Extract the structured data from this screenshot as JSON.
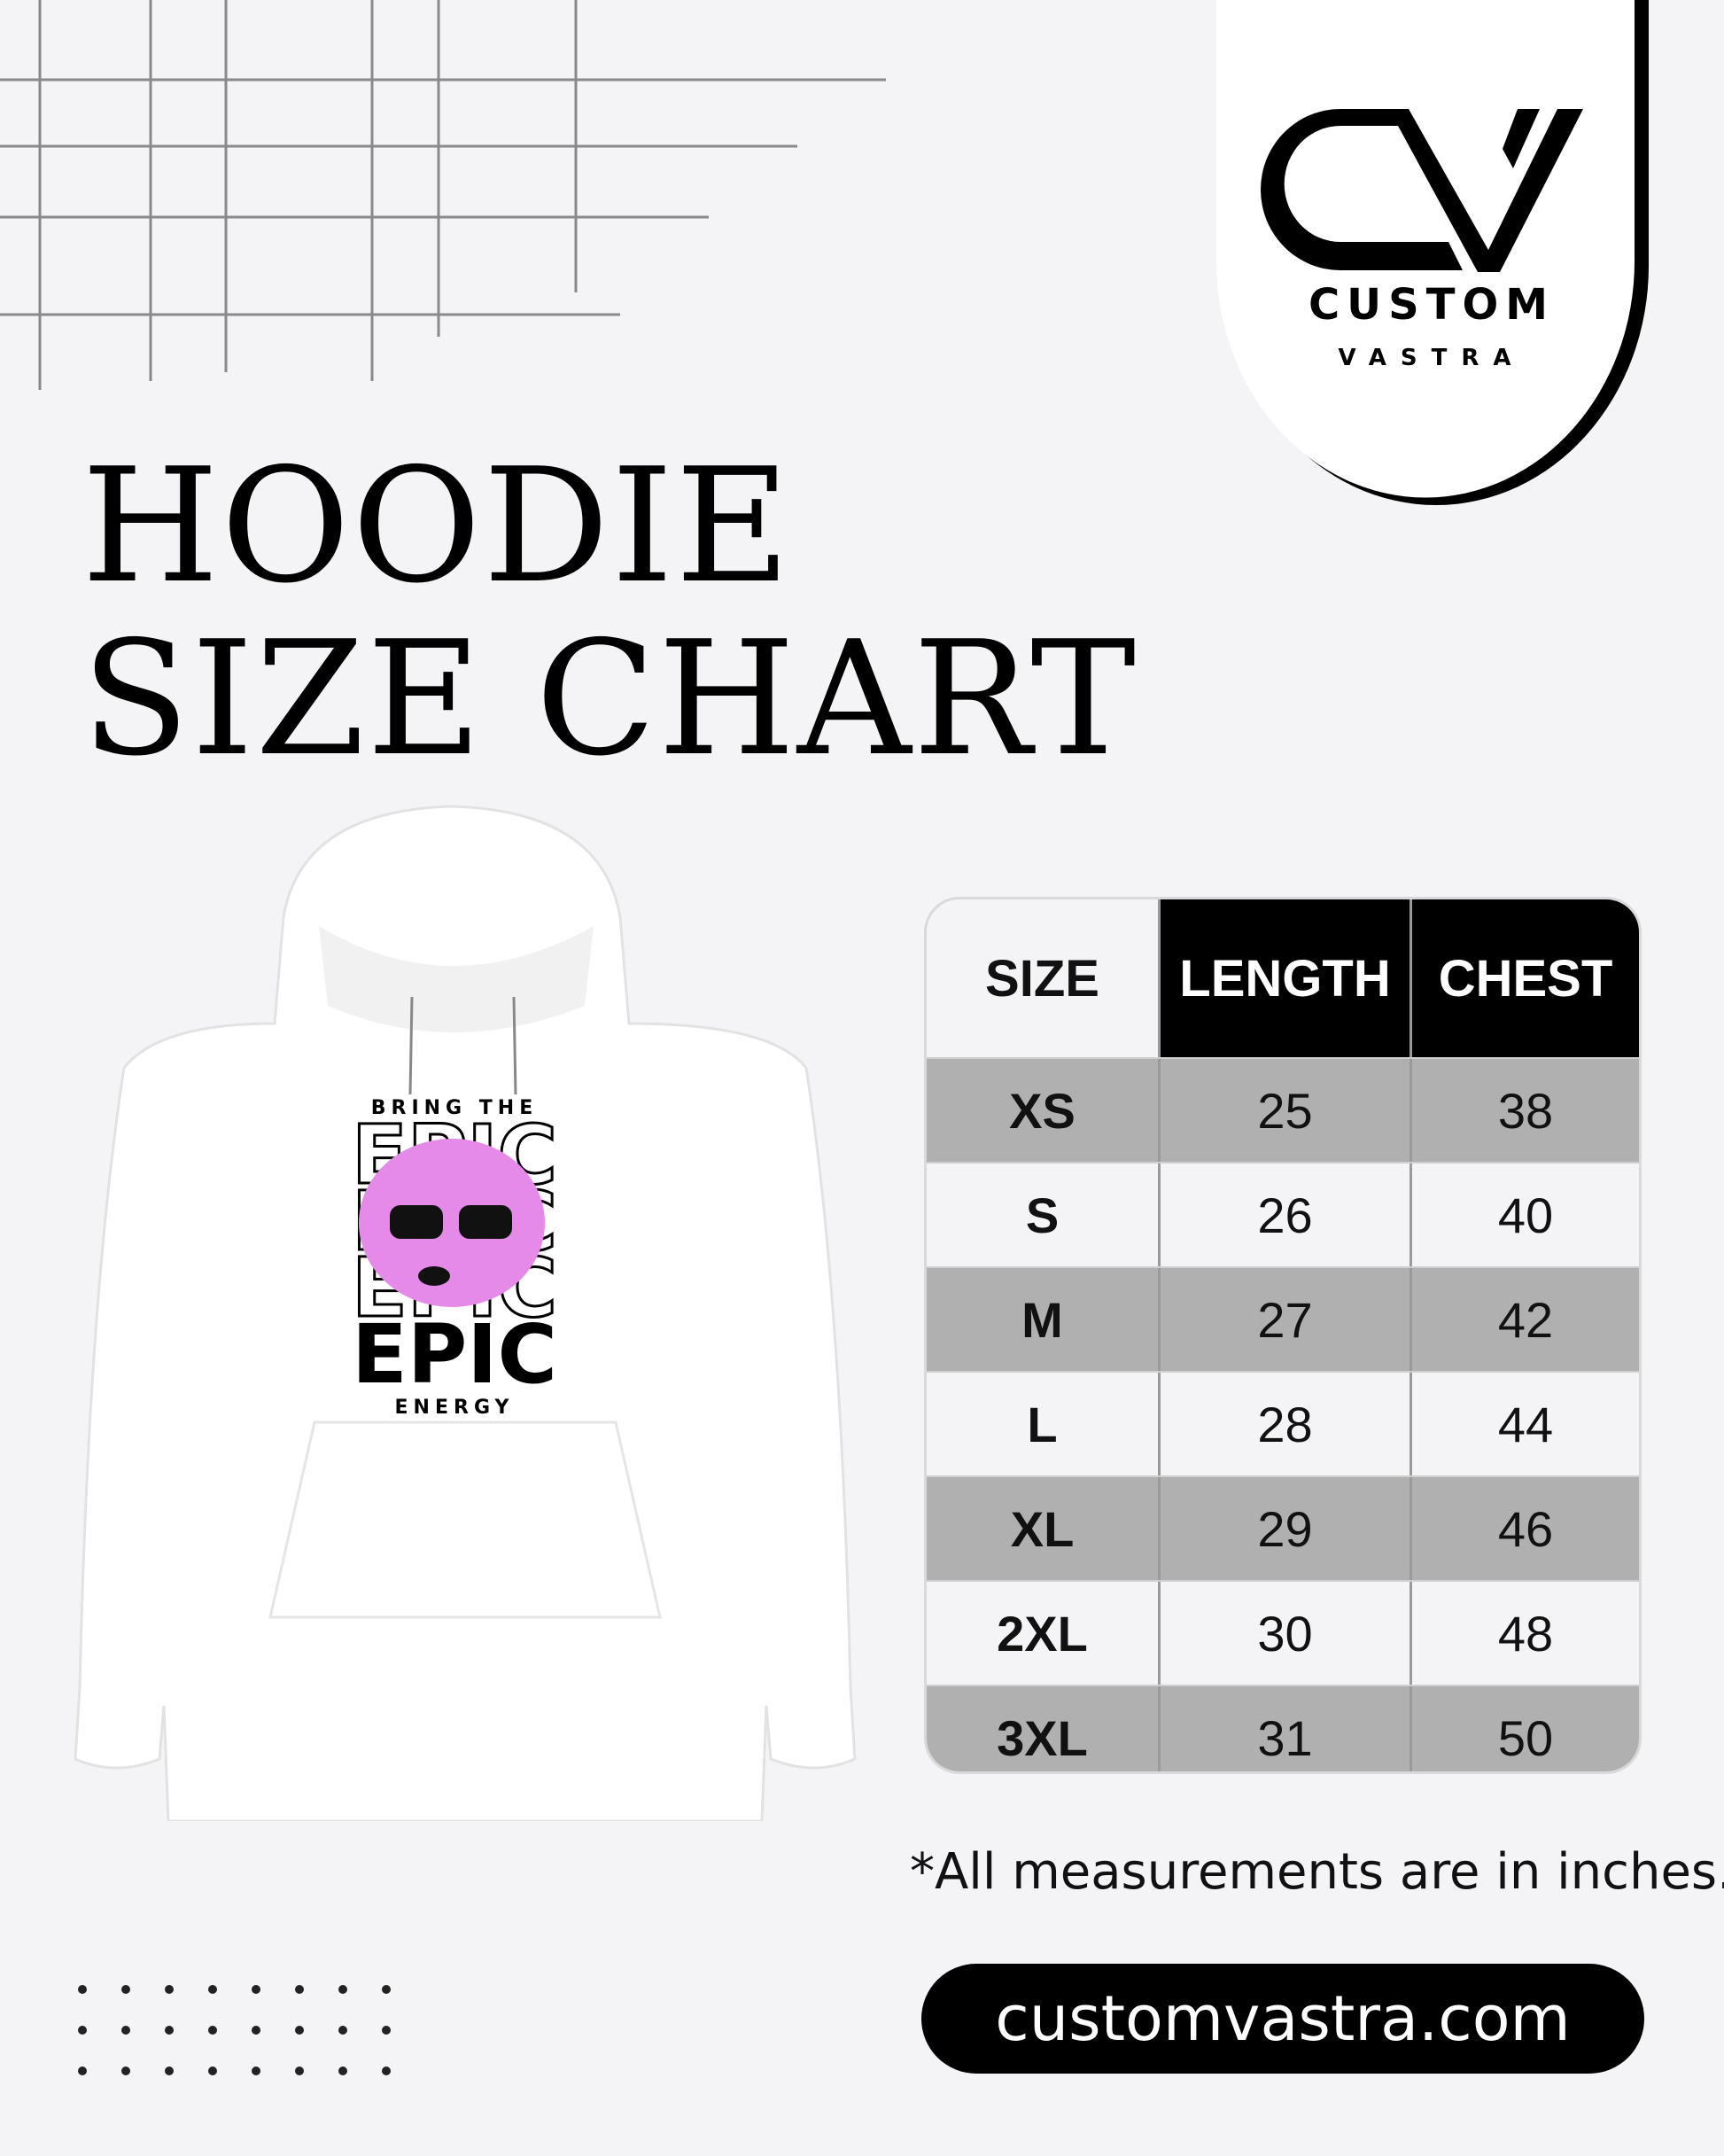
{
  "title": {
    "line1": "HOODIE",
    "line2": "SIZE CHART"
  },
  "logo": {
    "brand": "CUSTOM",
    "sub": "VASTRA",
    "monogram": "CV"
  },
  "hoodie_print": {
    "top": "BRING THE",
    "word": "EPIC",
    "bottom": "ENERGY",
    "accent_color": "#e58ae8"
  },
  "size_table": {
    "headers": [
      "SIZE",
      "LENGTH",
      "CHEST"
    ],
    "rows": [
      [
        "XS",
        "25",
        "38"
      ],
      [
        "S",
        "26",
        "40"
      ],
      [
        "M",
        "27",
        "42"
      ],
      [
        "L",
        "28",
        "44"
      ],
      [
        "XL",
        "29",
        "46"
      ],
      [
        "2XL",
        "30",
        "48"
      ],
      [
        "3XL",
        "31",
        "50"
      ]
    ]
  },
  "note": "*All measurements are in inches.",
  "website": "customvastra.com",
  "colors": {
    "background": "#f4f4f6",
    "header": "#000000",
    "shaded_row": "#b0b0b0"
  }
}
